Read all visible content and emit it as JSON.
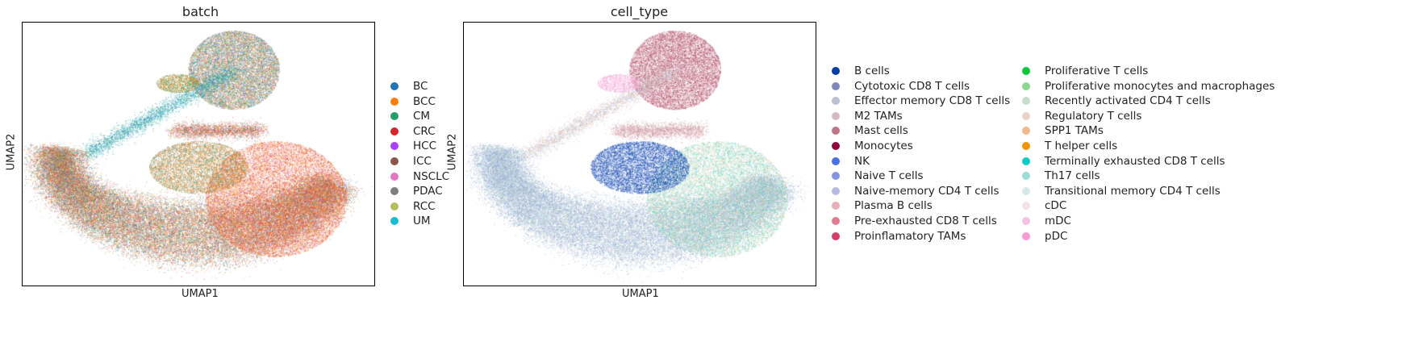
{
  "chart_data": [
    {
      "type": "scatter",
      "title": "batch",
      "xlabel": "UMAP1",
      "ylabel": "UMAP2",
      "grid": false,
      "legend_placement": "right",
      "series": [
        {
          "name": "BC",
          "color": "#1f77b4"
        },
        {
          "name": "BCC",
          "color": "#ff7f0e"
        },
        {
          "name": "CM",
          "color": "#279e68"
        },
        {
          "name": "CRC",
          "color": "#d62728"
        },
        {
          "name": "HCC",
          "color": "#aa40fc"
        },
        {
          "name": "ICC",
          "color": "#8c564b"
        },
        {
          "name": "NSCLC",
          "color": "#e377c2"
        },
        {
          "name": "PDAC",
          "color": "#7f7f7f"
        },
        {
          "name": "RCC",
          "color": "#b5bd61"
        },
        {
          "name": "UM",
          "color": "#17becf"
        }
      ]
    },
    {
      "type": "scatter",
      "title": "cell_type",
      "xlabel": "UMAP1",
      "ylabel": "UMAP2",
      "grid": false,
      "legend_placement": "right",
      "series": [
        {
          "name": "B cells",
          "color": "#023fa5"
        },
        {
          "name": "Cytotoxic CD8 T cells",
          "color": "#7d87b9"
        },
        {
          "name": "Effector memory CD8 T cells",
          "color": "#bec1d4"
        },
        {
          "name": "M2 TAMs",
          "color": "#d6bcc0"
        },
        {
          "name": "Mast cells",
          "color": "#bb7784"
        },
        {
          "name": "Monocytes",
          "color": "#8e063b"
        },
        {
          "name": "NK",
          "color": "#4a6fe3"
        },
        {
          "name": "Naive T cells",
          "color": "#8595e1"
        },
        {
          "name": "Naive-memory CD4 T cells",
          "color": "#b5bbe3"
        },
        {
          "name": "Plasma B cells",
          "color": "#e6afb9"
        },
        {
          "name": "Pre-exhausted CD8 T cells",
          "color": "#e07b91"
        },
        {
          "name": "Proinflamatory TAMs",
          "color": "#d33f6a"
        },
        {
          "name": "Proliferative T cells",
          "color": "#11c638"
        },
        {
          "name": "Proliferative monocytes and macrophages",
          "color": "#8dd593"
        },
        {
          "name": "Recently activated CD4 T cells",
          "color": "#c6dec7"
        },
        {
          "name": "Regulatory T cells",
          "color": "#ead3c6"
        },
        {
          "name": "SPP1 TAMs",
          "color": "#f0b98d"
        },
        {
          "name": "T helper cells",
          "color": "#ef9708"
        },
        {
          "name": "Terminally exhausted CD8 T cells",
          "color": "#0fcfc0"
        },
        {
          "name": "Th17 cells",
          "color": "#9cded6"
        },
        {
          "name": "Transitional memory CD4 T cells",
          "color": "#d5eae7"
        },
        {
          "name": "cDC",
          "color": "#f3e1eb"
        },
        {
          "name": "mDC",
          "color": "#f6c4e1"
        },
        {
          "name": "pDC",
          "color": "#f79cd4"
        }
      ]
    }
  ]
}
